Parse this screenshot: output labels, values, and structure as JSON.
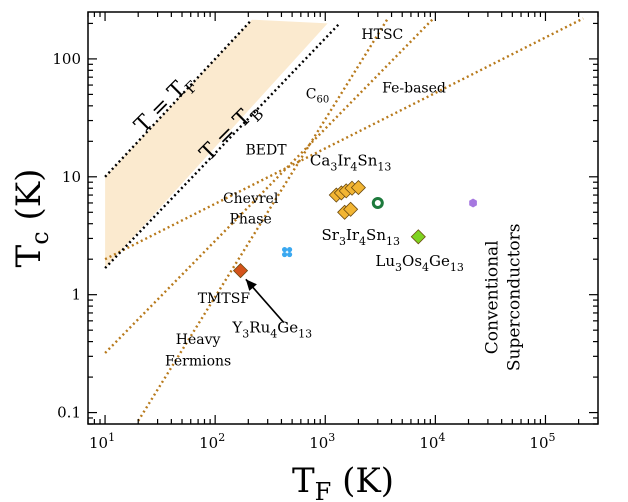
{
  "chart_data": {
    "type": "scatter",
    "xlabel": "T",
    "xlabel_sub": "F",
    "xlabel_unit": " (K)",
    "ylabel": "T",
    "ylabel_sub": "c",
    "ylabel_unit": " (K)",
    "x_scale": "log",
    "y_scale": "log",
    "xlim": [
      7,
      300000
    ],
    "ylim": [
      0.08,
      250
    ],
    "x_ticks": [
      {
        "value": 10,
        "base": "10",
        "exp": "1"
      },
      {
        "value": 100,
        "base": "10",
        "exp": "2"
      },
      {
        "value": 1000,
        "base": "10",
        "exp": "3"
      },
      {
        "value": 10000,
        "base": "10",
        "exp": "4"
      },
      {
        "value": 100000,
        "base": "10",
        "exp": "5"
      }
    ],
    "y_ticks": [
      {
        "value": 0.1,
        "label": "0.1"
      },
      {
        "value": 1,
        "label": "1"
      },
      {
        "value": 10,
        "label": "10"
      },
      {
        "value": 100,
        "label": "100"
      }
    ],
    "grid": false,
    "legend": "none",
    "colors": {
      "axes": "#000000",
      "band": "#fbeacf",
      "guide_lines": "#b87a1c",
      "bound_lines": "#000000",
      "arrow": "#000000"
    },
    "bound_lines": [
      {
        "name": "T = T_F",
        "label": "T = T",
        "label_sub": "F",
        "points": [
          [
            10,
            10
          ],
          [
            215,
            215
          ]
        ]
      },
      {
        "name": "T = T_B",
        "label": "T = T",
        "label_sub": "B",
        "points": [
          [
            10,
            1.68
          ],
          [
            1350,
            200
          ]
        ]
      }
    ],
    "band": [
      [
        10,
        10
      ],
      [
        215,
        215
      ],
      [
        1050,
        200
      ],
      [
        10,
        1.68
      ]
    ],
    "guide_lines": [
      {
        "name": "guide-line-upper",
        "points": [
          [
            10,
            2.0
          ],
          [
            220000,
            220
          ]
        ]
      },
      {
        "name": "guide-line-middle",
        "points": [
          [
            10,
            0.32
          ],
          [
            9600,
            220
          ]
        ]
      },
      {
        "name": "guide-line-lower",
        "points": [
          [
            20,
            0.085
          ],
          [
            3700,
            220
          ]
        ]
      }
    ],
    "points": [
      {
        "name": "Ca3Ir4Sn13",
        "x": 1260,
        "y": 7.0,
        "marker": "diamond",
        "color": "#f2b533",
        "size": 7
      },
      {
        "name": "Ca3Ir4Sn13",
        "x": 1400,
        "y": 7.3,
        "marker": "diamond",
        "color": "#f2b533",
        "size": 7
      },
      {
        "name": "Ca3Ir4Sn13",
        "x": 1550,
        "y": 7.6,
        "marker": "diamond",
        "color": "#f2b533",
        "size": 7
      },
      {
        "name": "Ca3Ir4Sn13",
        "x": 1750,
        "y": 8.0,
        "marker": "diamond",
        "color": "#f2b533",
        "size": 7
      },
      {
        "name": "Ca3Ir4Sn13",
        "x": 2000,
        "y": 8.1,
        "marker": "diamond",
        "color": "#f2b533",
        "size": 7
      },
      {
        "name": "Sr3Ir4Sn13",
        "x": 1500,
        "y": 5.0,
        "marker": "diamond",
        "color": "#f2b533",
        "size": 7
      },
      {
        "name": "Sr3Ir4Sn13",
        "x": 1700,
        "y": 5.3,
        "marker": "diamond",
        "color": "#f2b533",
        "size": 7
      },
      {
        "name": "Y3Ru4Ge13",
        "x": 170,
        "y": 1.6,
        "marker": "diamond",
        "color": "#d4531b",
        "size": 7
      },
      {
        "name": "Lu3Os4Ge13",
        "x": 7000,
        "y": 3.1,
        "marker": "diamond",
        "color": "#7ed321",
        "size": 7
      },
      {
        "name": "point-blue",
        "x": 450,
        "y": 2.3,
        "marker": "cross",
        "color": "#3aa8f0",
        "size": 5
      },
      {
        "name": "point-green-ring",
        "x": 3000,
        "y": 6.0,
        "marker": "ring",
        "color": "#1d7a3c",
        "size": 5
      },
      {
        "name": "point-purple",
        "x": 22000,
        "y": 6.0,
        "marker": "hexagon",
        "color": "#a678e0",
        "size": 5
      }
    ],
    "annotations": [
      {
        "text": "HTSC",
        "x": 3300,
        "y": 148
      },
      {
        "text": "C",
        "sub": "60",
        "x": 850,
        "y": 46
      },
      {
        "text": "Fe-based",
        "x": 6400,
        "y": 52
      },
      {
        "text": "BEDT",
        "x": 290,
        "y": 15.5
      },
      {
        "text": "Chevrel",
        "x": 210,
        "y": 6.0
      },
      {
        "text": "Phase",
        "x": 210,
        "y": 4.0
      },
      {
        "text": "TMTSF",
        "x": 120,
        "y": 0.85
      },
      {
        "text": "Heavy",
        "x": 70,
        "y": 0.38
      },
      {
        "text": "Fermions",
        "x": 70,
        "y": 0.25
      }
    ],
    "point_labels": [
      {
        "parts": [
          [
            "Ca",
            ""
          ],
          [
            "3",
            "sub"
          ],
          [
            "Ir",
            ""
          ],
          [
            "4",
            "sub"
          ],
          [
            "Sn",
            ""
          ],
          [
            "13",
            "sub"
          ]
        ],
        "x": 1700,
        "y": 12.5
      },
      {
        "parts": [
          [
            "Sr",
            ""
          ],
          [
            "3",
            "sub"
          ],
          [
            "Ir",
            ""
          ],
          [
            "4",
            "sub"
          ],
          [
            "Sn",
            ""
          ],
          [
            "13",
            "sub"
          ]
        ],
        "x": 2100,
        "y": 2.9
      },
      {
        "parts": [
          [
            "Lu",
            ""
          ],
          [
            "3",
            "sub"
          ],
          [
            "Os",
            ""
          ],
          [
            "4",
            "sub"
          ],
          [
            "Ge",
            ""
          ],
          [
            "13",
            "sub"
          ]
        ],
        "x": 7200,
        "y": 1.75
      },
      {
        "parts": [
          [
            "Y",
            ""
          ],
          [
            "3",
            "sub"
          ],
          [
            "Ru",
            ""
          ],
          [
            "4",
            "sub"
          ],
          [
            "Ge",
            ""
          ],
          [
            "13",
            "sub"
          ]
        ],
        "x": 330,
        "y": 0.48
      }
    ],
    "arrow": {
      "from": [
        420,
        0.58
      ],
      "to": [
        190,
        1.35
      ]
    },
    "vertical_text": {
      "lines": [
        "Conventional",
        "Superconductors"
      ],
      "x": 45000,
      "y": 0.95
    }
  }
}
